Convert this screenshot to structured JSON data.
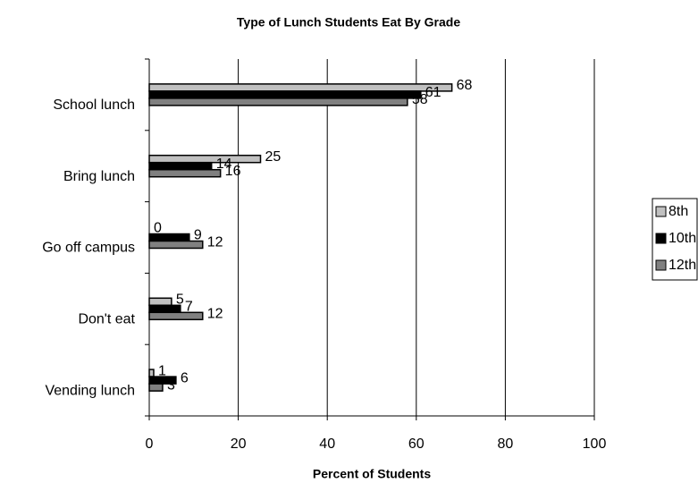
{
  "chart_data": {
    "type": "hbar",
    "title": "Type of Lunch Students Eat By Grade",
    "xlabel": "Percent of Students",
    "categories": [
      "School lunch",
      "Bring lunch",
      "Go off campus",
      "Don't eat",
      "Vending lunch"
    ],
    "series": [
      {
        "name": "8th",
        "color": "#c0c0c0",
        "values": [
          68,
          25,
          0,
          5,
          1
        ]
      },
      {
        "name": "10th",
        "color": "#000000",
        "values": [
          61,
          14,
          9,
          7,
          6
        ]
      },
      {
        "name": "12th",
        "color": "#808080",
        "values": [
          58,
          16,
          12,
          12,
          3
        ]
      }
    ],
    "xlim": [
      0,
      100
    ],
    "xticks": [
      0,
      20,
      40,
      60,
      80,
      100
    ],
    "grid": true,
    "legend": "right"
  }
}
